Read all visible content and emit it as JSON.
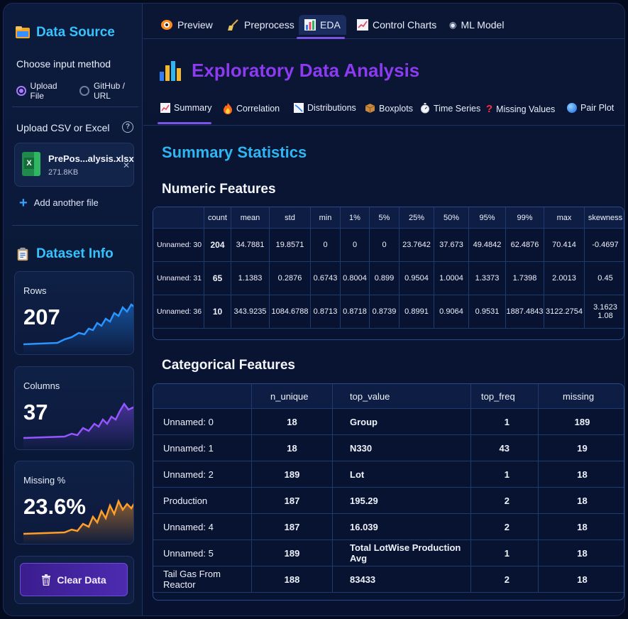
{
  "sidebar": {
    "data_source_title": "Data Source",
    "choose_method_label": "Choose input method",
    "methods": [
      "Upload File",
      "GitHub / URL"
    ],
    "selected_method": "Upload File",
    "upload_label": "Upload CSV or Excel",
    "help_glyph": "?",
    "file": {
      "name": "PrePos...alysis.xlsx",
      "size": "271.8KB",
      "icon_letter": "X"
    },
    "add_file_label": "Add another file",
    "dataset_info_title": "Dataset Info",
    "metrics": [
      {
        "label": "Rows",
        "value": "207",
        "color": "#1e8cff"
      },
      {
        "label": "Columns",
        "value": "37",
        "color": "#8a4bff"
      },
      {
        "label": "Missing %",
        "value": "23.6%",
        "color": "#ff9a1f"
      }
    ],
    "clear_button_label": "Clear Data"
  },
  "topnav": {
    "tabs": [
      "Preview",
      "Preprocess",
      "EDA",
      "Control Charts",
      "ML Model"
    ],
    "active": "EDA"
  },
  "page": {
    "title": "Exploratory Data Analysis",
    "subtabs": [
      "Summary",
      "Correlation",
      "Distributions",
      "Boxplots",
      "Time Series",
      "Missing Values",
      "Pair Plot"
    ],
    "active_subtab": "Summary",
    "section_title": "Summary Statistics",
    "numeric_title": "Numeric Features",
    "categorical_title": "Categorical Features"
  },
  "numeric_table": {
    "columns": [
      "",
      "count",
      "mean",
      "std",
      "min",
      "1%",
      "5%",
      "25%",
      "50%",
      "95%",
      "99%",
      "max",
      "skewness"
    ],
    "rows": [
      [
        "Unnamed: 30",
        "204",
        "34.7881",
        "19.8571",
        "0",
        "0",
        "0",
        "23.7642",
        "37.673",
        "49.4842",
        "62.4876",
        "70.414",
        "-0.4697"
      ],
      [
        "Unnamed: 31",
        "65",
        "1.1383",
        "0.2876",
        "0.6743",
        "0.8004",
        "0.899",
        "0.9504",
        "1.0004",
        "1.3373",
        "1.7398",
        "2.0013",
        "0.45"
      ],
      [
        "Unnamed: 36",
        "10",
        "343.9235",
        "1084.6788",
        "0.8713",
        "0.8718",
        "0.8739",
        "0.8991",
        "0.9064",
        "0.9531",
        "1887.4843",
        "3122.2754",
        "3.1623 1.08"
      ]
    ]
  },
  "categorical_table": {
    "columns": [
      "",
      "n_unique",
      "top_value",
      "top_freq",
      "missing"
    ],
    "rows": [
      [
        "Unnamed: 0",
        "18",
        "Group",
        "1",
        "189"
      ],
      [
        "Unnamed: 1",
        "18",
        "N330",
        "43",
        "19"
      ],
      [
        "Unnamed: 2",
        "189",
        "Lot",
        "1",
        "18"
      ],
      [
        "Production",
        "187",
        "195.29",
        "2",
        "18"
      ],
      [
        "Unnamed: 4",
        "187",
        "16.039",
        "2",
        "18"
      ],
      [
        "Unnamed: 5",
        "189",
        "Total LotWise Production Avg",
        "1",
        "18"
      ],
      [
        "Tail Gas From Reactor",
        "188",
        "83433",
        "2",
        "18"
      ]
    ]
  }
}
